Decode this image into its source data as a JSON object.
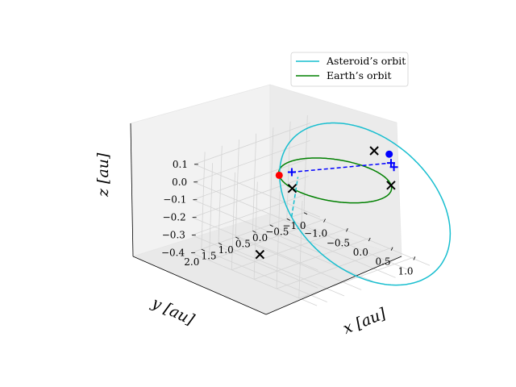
{
  "chart_data": {
    "type": "line",
    "projection": "3d",
    "xlabel": "x [au]",
    "ylabel": "y [au]",
    "zlabel": "z [au]",
    "x_ticks": [
      "−1.0",
      "−0.5",
      "0.0",
      "0.5",
      "1.0"
    ],
    "y_ticks": [
      "−1.0",
      "−0.5",
      "0.0",
      "0.5",
      "1.0",
      "1.5",
      "2.0"
    ],
    "z_ticks": [
      "−0.4",
      "−0.3",
      "−0.2",
      "−0.1",
      "0.0",
      "0.1"
    ],
    "xlim": [
      -1.4,
      1.4
    ],
    "ylim": [
      -1.1,
      2.3
    ],
    "zlim": [
      -0.4,
      0.15
    ],
    "grid": true,
    "legend_position": "top-right",
    "colors": {
      "asteroid": "#17becf",
      "earth": "#008000",
      "transfer": "#0000ff",
      "departure_point": "#ff0000",
      "arrival_point": "#0000ff",
      "marker": "#000000"
    },
    "series": [
      {
        "name": "Asteroid’s orbit",
        "color": "#17becf",
        "semi_major_axis": 1.55,
        "eccentricity": 0.39,
        "inclination_deg": 10.5,
        "ascending_node_deg": 125,
        "arg_periapsis_deg": 45
      },
      {
        "name": "Earth’s orbit",
        "color": "#008000",
        "radius": 1.0,
        "z": 0.0
      }
    ],
    "points": {
      "departure": {
        "x": -0.72,
        "y": 0.69,
        "z": 0.0,
        "color": "#ff0000"
      },
      "arrival": {
        "x": 0.55,
        "y": -0.83,
        "z": 0.15,
        "color": "#0000ff"
      }
    },
    "x_markers": [
      {
        "x": -0.21,
        "y": 0.98,
        "z": 0.0
      },
      {
        "x": 0.71,
        "y": -0.7,
        "z": 0.0
      },
      {
        "x": -0.15,
        "y": 1.95,
        "z": -0.3
      },
      {
        "x": 0.3,
        "y": -0.72,
        "z": 0.15
      }
    ],
    "plus_markers": [
      {
        "x": -0.58,
        "y": 0.51,
        "z": 0.02
      },
      {
        "x": 0.62,
        "y": -0.8,
        "z": 0.11
      },
      {
        "x": 0.82,
        "y": -0.62,
        "z": 0.12
      }
    ]
  }
}
